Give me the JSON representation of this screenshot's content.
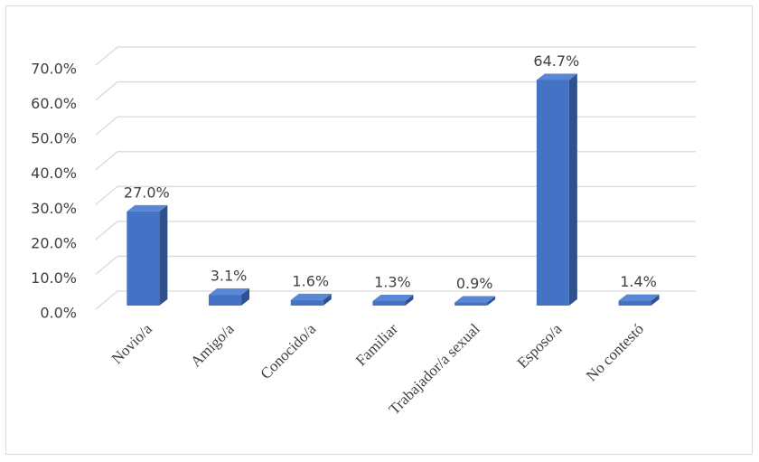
{
  "chart_data": {
    "type": "bar3d",
    "categories": [
      "Novio/a",
      "Amigo/a",
      "Conocido/a",
      "Familiar",
      "Trabajador/a sexual",
      "Esposo/a",
      "No contestó"
    ],
    "values": [
      27.0,
      3.1,
      1.6,
      1.3,
      0.9,
      64.7,
      1.4
    ],
    "value_labels": [
      "27.0%",
      "3.1%",
      "1.6%",
      "1.3%",
      "0.9%",
      "64.7%",
      "1.4%"
    ],
    "color": "#4472c4",
    "ylim": [
      0,
      70
    ],
    "yticks": [
      {
        "value": 0,
        "label": "0.0%"
      },
      {
        "value": 10,
        "label": "10.0%"
      },
      {
        "value": 20,
        "label": "20.0%"
      },
      {
        "value": 30,
        "label": "30.0%"
      },
      {
        "value": 40,
        "label": "40.0%"
      },
      {
        "value": 50,
        "label": "50.0%"
      },
      {
        "value": 60,
        "label": "60.0%"
      },
      {
        "value": 70,
        "label": "70.0%"
      }
    ],
    "grid": true
  }
}
